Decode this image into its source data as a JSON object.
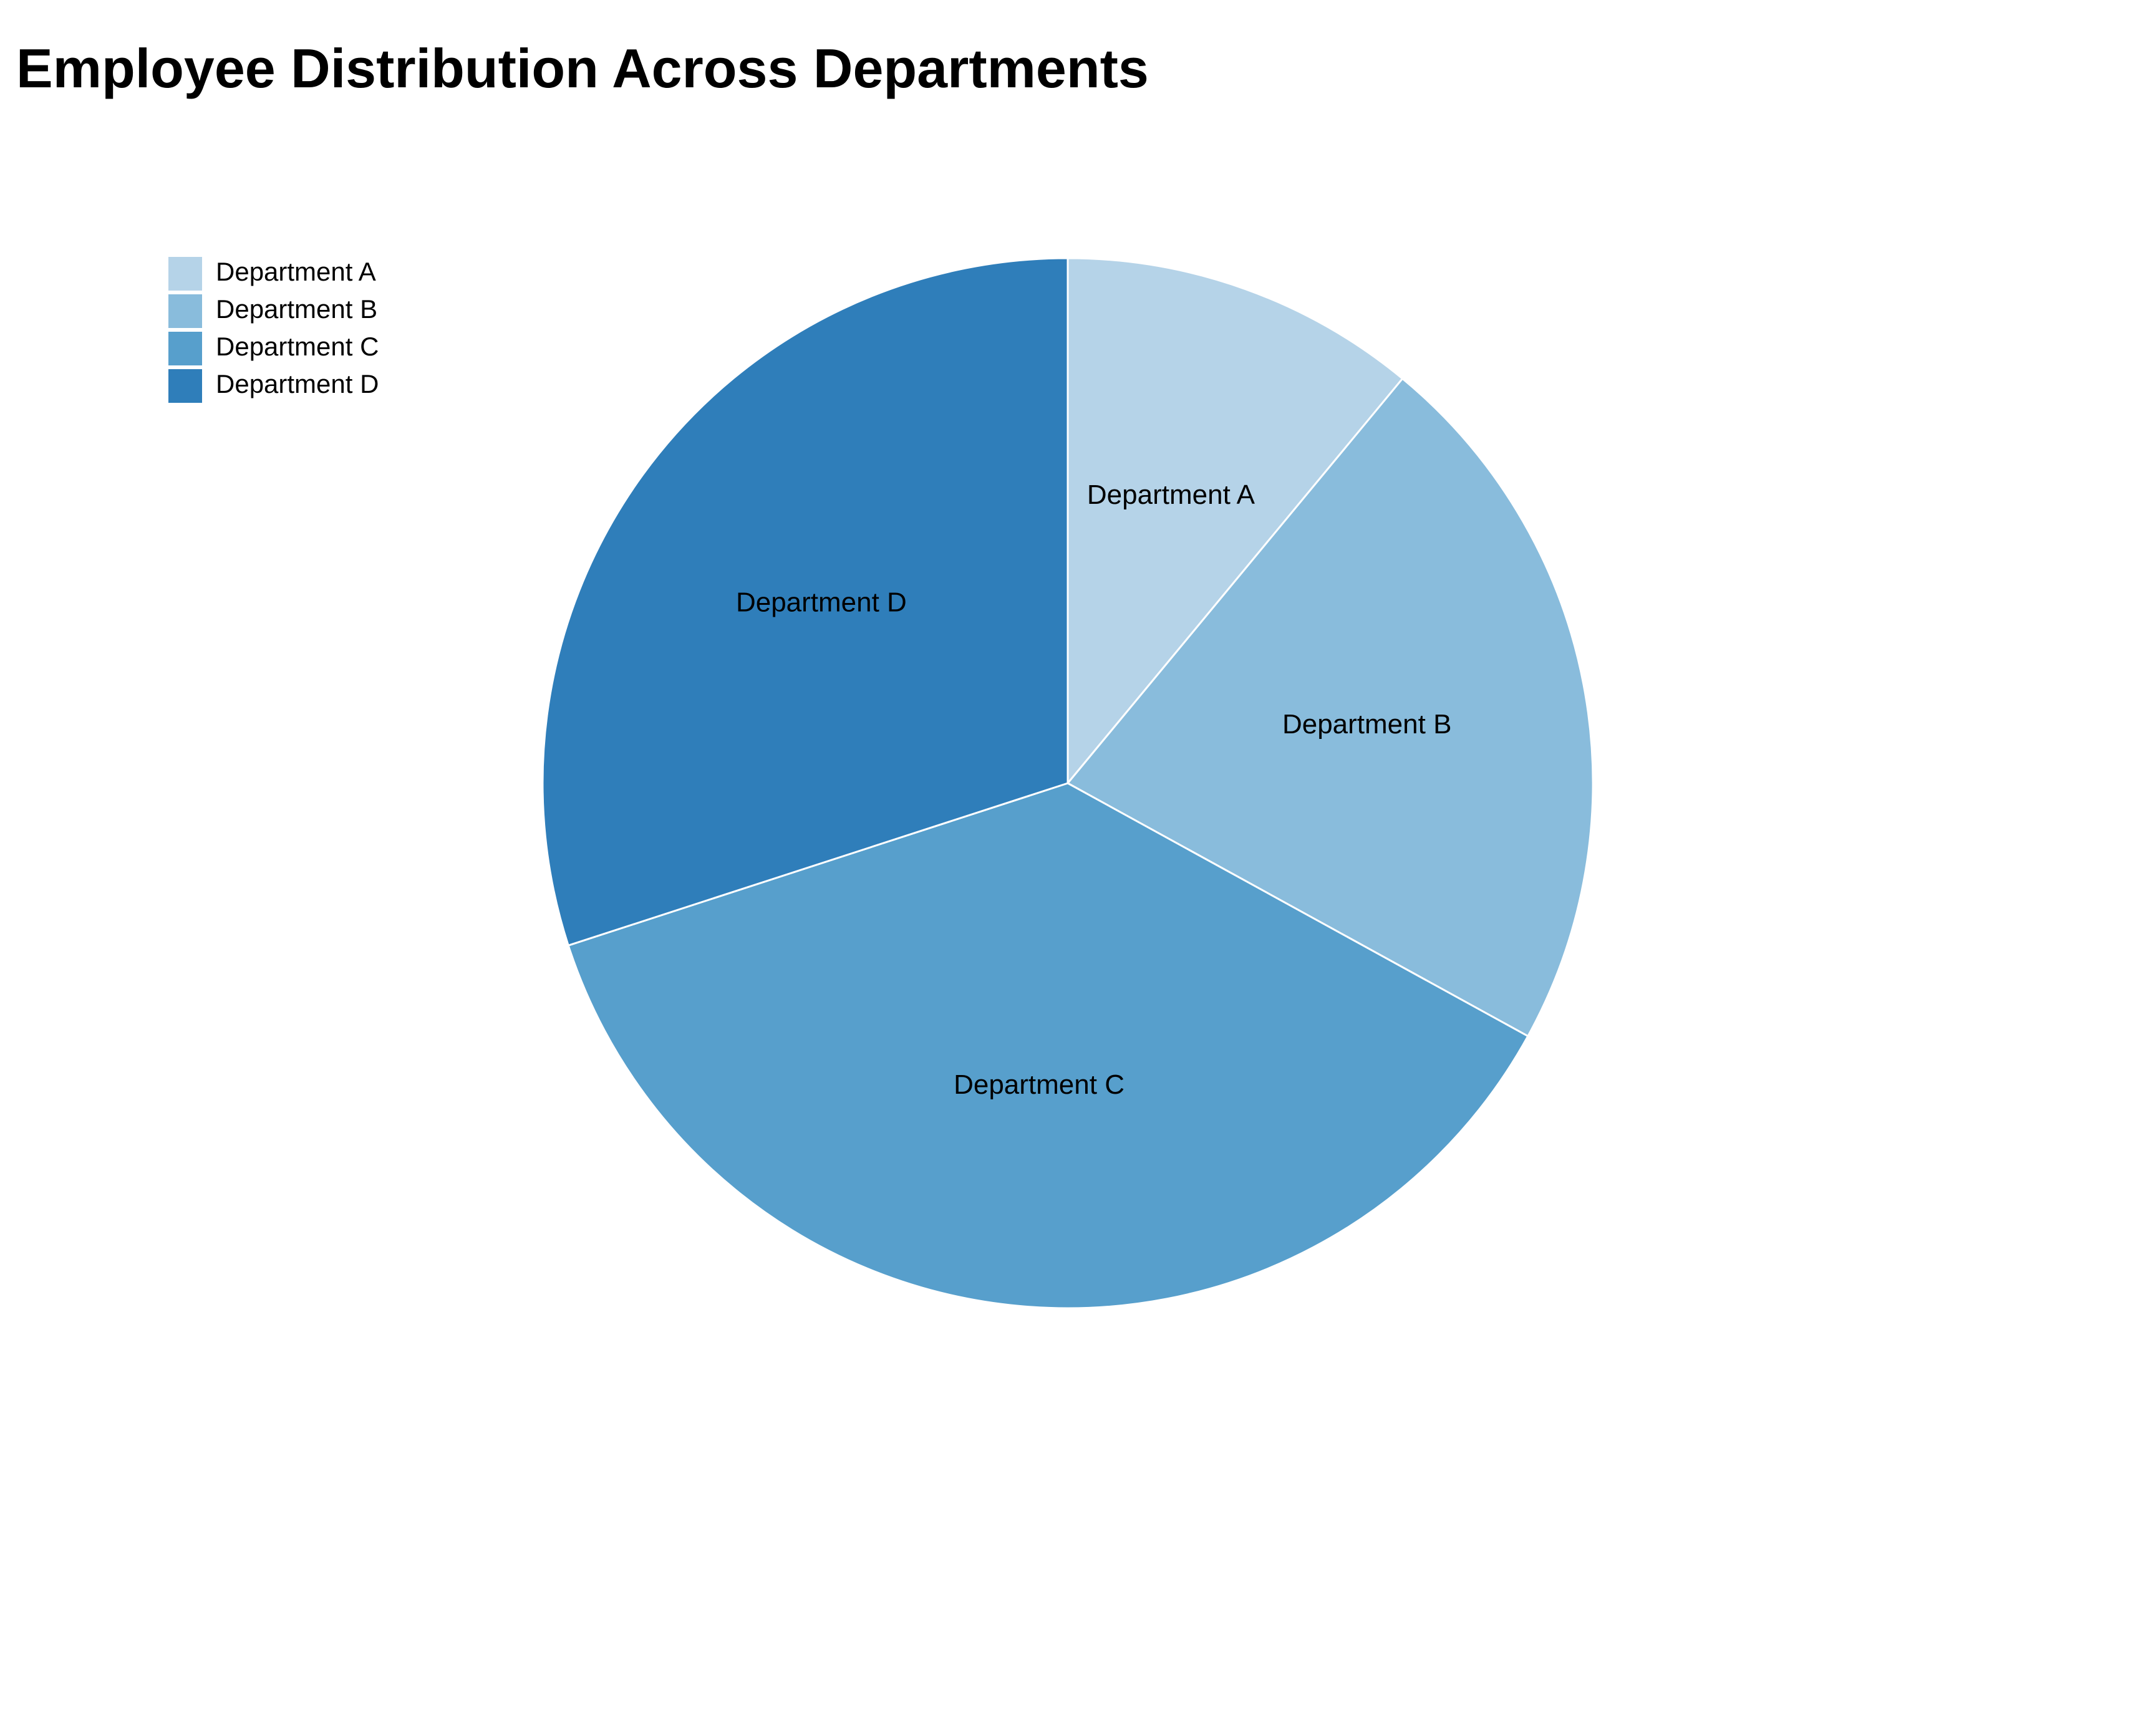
{
  "chart_data": {
    "type": "pie",
    "title": "Employee Distribution Across Departments",
    "categories": [
      "Department A",
      "Department B",
      "Department C",
      "Department D"
    ],
    "values": [
      11,
      22,
      37,
      30
    ],
    "colors": [
      "#b5d3e8",
      "#89bcdc",
      "#579fcc",
      "#2f7eba"
    ],
    "slice_border_color": "#ffffff",
    "start_angle": "12 o'clock",
    "direction": "clockwise",
    "legend": {
      "position": "top-left"
    }
  }
}
